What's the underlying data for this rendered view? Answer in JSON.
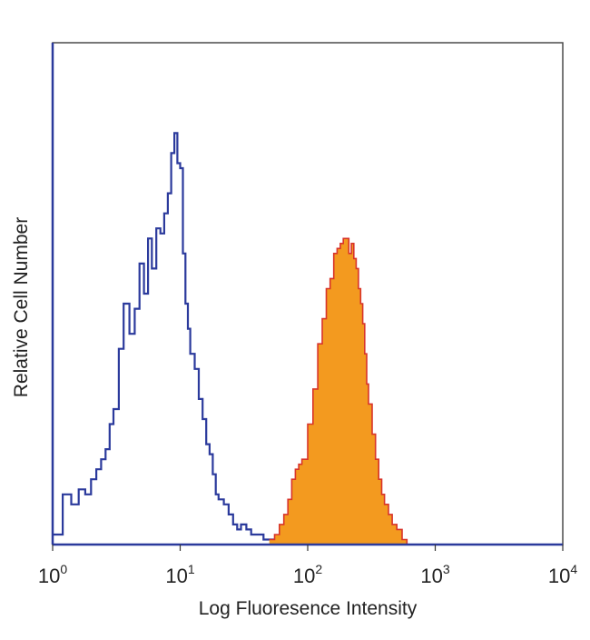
{
  "chart_data": {
    "type": "area",
    "title": "",
    "xlabel": "Log Fluoresence Intensity",
    "ylabel": "Relative Cell Number",
    "xscale": "log",
    "xlim": [
      1,
      10000
    ],
    "ylim": [
      0,
      100
    ],
    "grid": false,
    "legend": "none",
    "x_ticks": [
      {
        "value": 1,
        "base": "10",
        "exp": "0"
      },
      {
        "value": 10,
        "base": "10",
        "exp": "1"
      },
      {
        "value": 100,
        "base": "10",
        "exp": "2"
      },
      {
        "value": 1000,
        "base": "10",
        "exp": "3"
      },
      {
        "value": 10000,
        "base": "10",
        "exp": "4"
      }
    ],
    "series": [
      {
        "role": "control",
        "style": "outline",
        "color": "#2b3a9c",
        "x": [
          1.0,
          1.2,
          1.4,
          1.6,
          1.8,
          2.0,
          2.2,
          2.4,
          2.6,
          2.8,
          3.0,
          3.3,
          3.6,
          4.0,
          4.4,
          4.8,
          5.2,
          5.6,
          6.0,
          6.5,
          7.0,
          7.5,
          8.0,
          8.5,
          9.0,
          9.5,
          10.0,
          10.5,
          11.0,
          11.5,
          12.0,
          13.0,
          14.0,
          15.0,
          16.0,
          17.0,
          18.0,
          19.0,
          20.0,
          22.0,
          24.0,
          26.0,
          28.0,
          30.0,
          33.0,
          36.0,
          40.0,
          45.0,
          50.0,
          55.0
        ],
        "y": [
          2,
          10,
          8,
          11,
          10,
          13,
          15,
          17,
          19,
          24,
          27,
          39,
          48,
          42,
          47,
          56,
          50,
          61,
          55,
          63,
          62,
          66,
          70,
          78,
          82,
          76,
          75,
          58,
          48,
          43,
          38,
          35,
          29,
          25,
          20,
          18,
          14,
          10,
          9,
          8,
          6,
          4,
          3,
          4,
          3,
          2,
          2,
          1,
          1,
          0
        ]
      },
      {
        "role": "stained",
        "style": "filled",
        "color": "#f39a1f",
        "stroke": "#d8342a",
        "x": [
          50,
          55,
          60,
          65,
          70,
          75,
          80,
          85,
          90,
          100,
          110,
          120,
          130,
          140,
          150,
          160,
          170,
          180,
          190,
          200,
          210,
          220,
          230,
          240,
          250,
          260,
          270,
          280,
          290,
          300,
          320,
          340,
          360,
          380,
          400,
          430,
          460,
          500,
          550,
          600
        ],
        "y": [
          1,
          2,
          4,
          6,
          9,
          13,
          15,
          16,
          17,
          24,
          31,
          40,
          45,
          51,
          53,
          58,
          59,
          60,
          61,
          61,
          58,
          60,
          57,
          55,
          51,
          48,
          44,
          38,
          32,
          28,
          22,
          17,
          13,
          10,
          8,
          6,
          4,
          3,
          1,
          0
        ]
      }
    ]
  }
}
